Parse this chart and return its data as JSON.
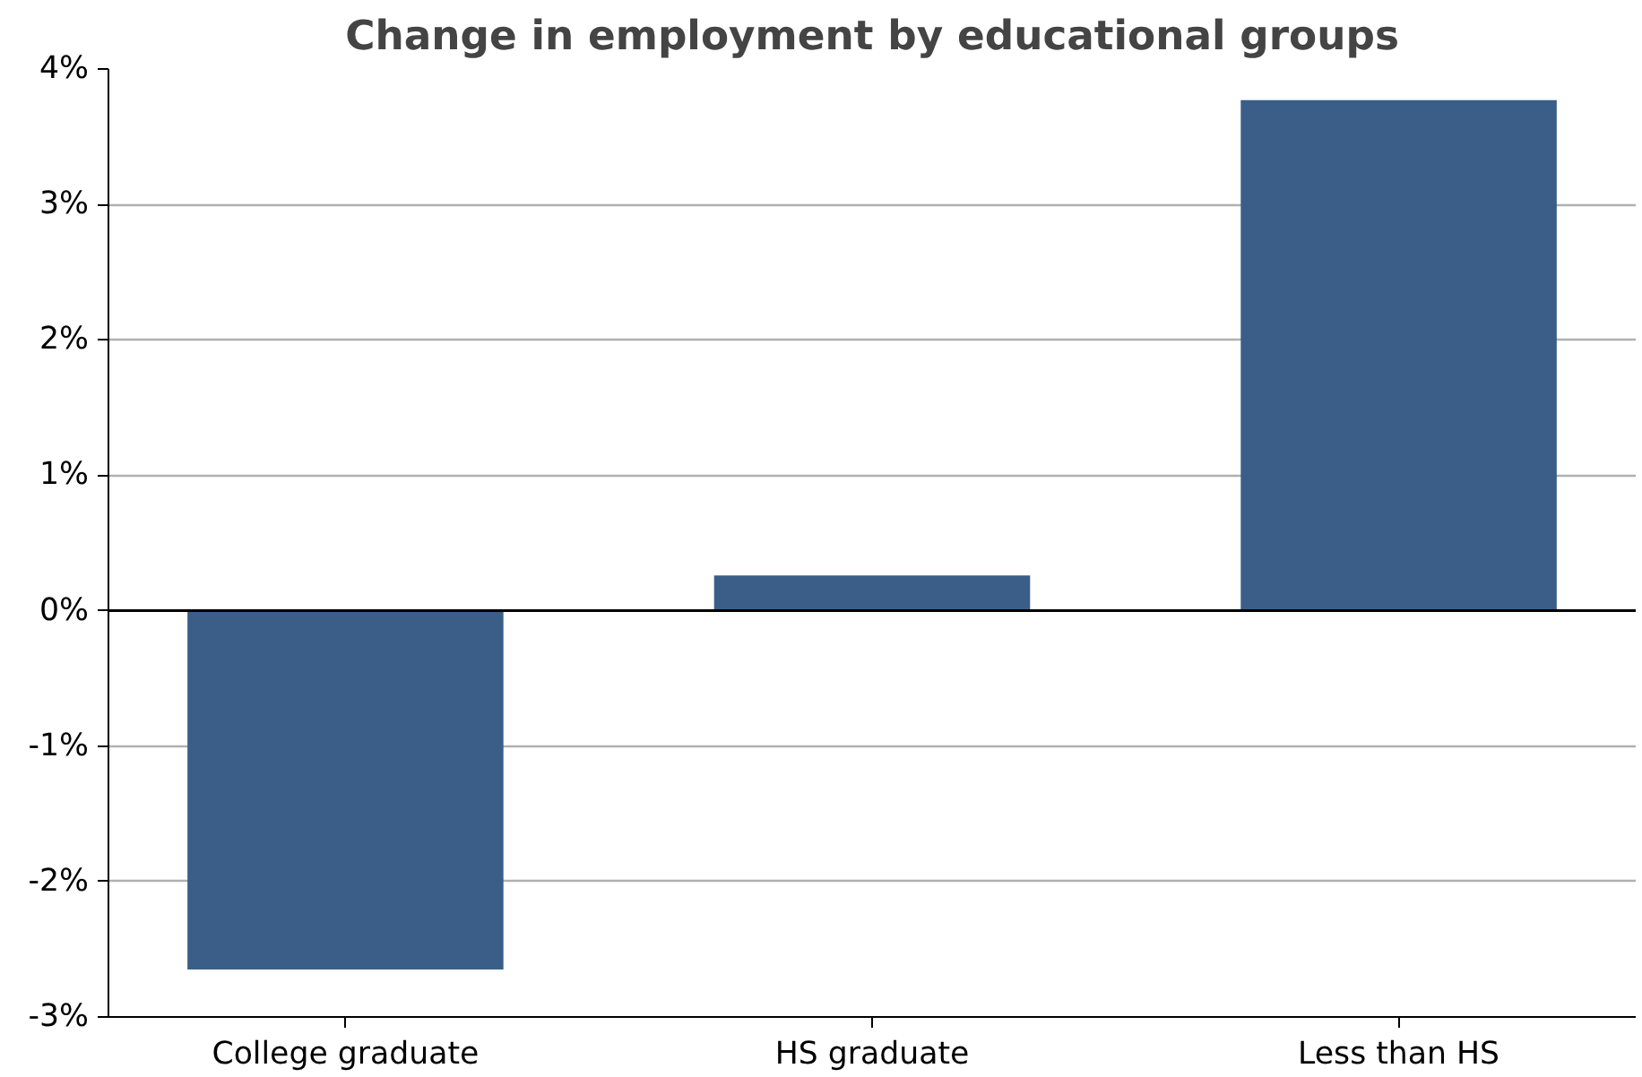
{
  "chart_data": {
    "type": "bar",
    "title": "Change in employment by educational groups",
    "categories": [
      "College graduate",
      "HS graduate",
      "Less than HS"
    ],
    "values": [
      -2.65,
      0.26,
      3.77
    ],
    "color": "#3a5e87",
    "ylim": [
      -3,
      4
    ],
    "yticks": [
      {
        "value": -3,
        "label": "-3%"
      },
      {
        "value": -2,
        "label": "-2%"
      },
      {
        "value": -1,
        "label": "-1%"
      },
      {
        "value": 0,
        "label": "0%"
      },
      {
        "value": 1,
        "label": "1%"
      },
      {
        "value": 2,
        "label": "2%"
      },
      {
        "value": 3,
        "label": "3%"
      },
      {
        "value": 4,
        "label": "4%"
      }
    ],
    "grid": "y",
    "ref_lines": [
      {
        "axis": "y",
        "value": 0,
        "color": "#000000"
      }
    ]
  }
}
